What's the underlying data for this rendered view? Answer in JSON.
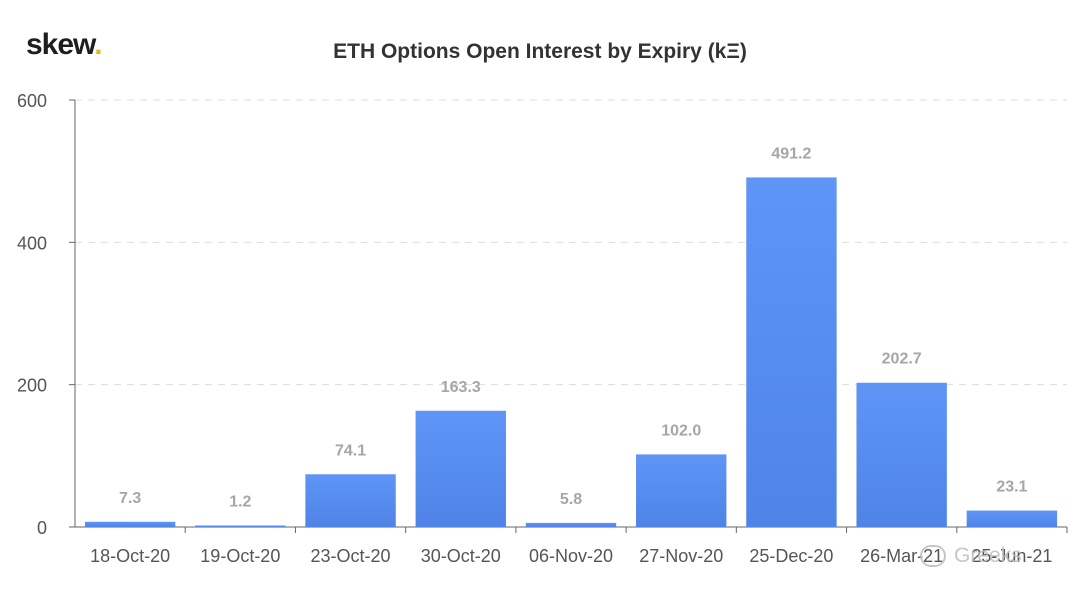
{
  "brand": {
    "text": "skew",
    "dot": "."
  },
  "watermark": {
    "text": "Greeks",
    "icon": "wechat-icon"
  },
  "colors": {
    "bar_top": "#5e95f7",
    "bar_bottom": "#4f84e6",
    "grid": "#dddddd",
    "axis": "#666666"
  },
  "chart_data": {
    "type": "bar",
    "title": "ETH Options Open Interest by Expiry (kΞ)",
    "xlabel": "",
    "ylabel": "",
    "categories": [
      "18-Oct-20",
      "19-Oct-20",
      "23-Oct-20",
      "30-Oct-20",
      "06-Nov-20",
      "27-Nov-20",
      "25-Dec-20",
      "26-Mar-21",
      "25-Jun-21"
    ],
    "values": [
      7.3,
      1.2,
      74.1,
      163.3,
      5.8,
      102.0,
      491.2,
      202.7,
      23.1
    ],
    "data_labels": [
      "7.3",
      "1.2",
      "74.1",
      "163.3",
      "5.8",
      "102.0",
      "491.2",
      "202.7",
      "23.1"
    ],
    "yticks": [
      0,
      200,
      400,
      600
    ],
    "ylim": [
      0,
      600
    ],
    "grid": true,
    "legend": "none"
  }
}
